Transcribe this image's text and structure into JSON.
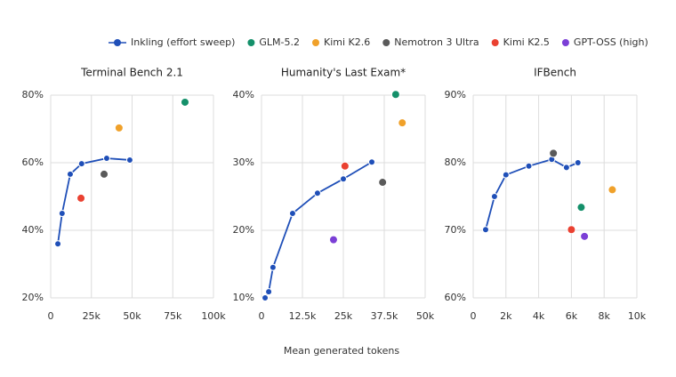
{
  "legend": [
    {
      "name": "Inkling (effort sweep)",
      "color": "#1f4fb8",
      "line": true
    },
    {
      "name": "GLM-5.2",
      "color": "#14906a"
    },
    {
      "name": "Kimi K2.6",
      "color": "#f0a12a"
    },
    {
      "name": "Nemotron 3 Ultra",
      "color": "#5a5a5a"
    },
    {
      "name": "Kimi K2.5",
      "color": "#ea4131"
    },
    {
      "name": "GPT-OSS (high)",
      "color": "#7b3fd6"
    }
  ],
  "xlabel": "Mean generated tokens",
  "chart_data": [
    {
      "type": "scatter",
      "title": "Terminal Bench 2.1",
      "xlim": [
        0,
        100000
      ],
      "xticks": [
        0,
        {
          "value": 25000,
          "label": "25k"
        },
        {
          "value": 50000,
          "label": "50k"
        },
        {
          "value": 75000,
          "label": "75k"
        },
        {
          "value": 100000,
          "label": "100k"
        }
      ],
      "ylim": [
        20,
        80
      ],
      "yticks": [
        {
          "value": 20,
          "label": "20%"
        },
        {
          "value": 40,
          "label": "40%"
        },
        {
          "value": 60,
          "label": "60%"
        },
        {
          "value": 80,
          "label": "80%"
        }
      ],
      "grid": true,
      "series": [
        {
          "name": "Inkling (effort sweep)",
          "x": [
            4400,
            7000,
            12000,
            19000,
            34400,
            48600
          ],
          "values": [
            36,
            45,
            56.6,
            59.7,
            61.3,
            60.8
          ]
        },
        {
          "name": "GLM-5.2",
          "x": [
            82500
          ],
          "values": [
            77.9
          ]
        },
        {
          "name": "Kimi K2.6",
          "x": [
            42000
          ],
          "values": [
            70.3
          ]
        },
        {
          "name": "Nemotron 3 Ultra",
          "x": [
            32800
          ],
          "values": [
            56.6
          ]
        },
        {
          "name": "Kimi K2.5",
          "x": [
            18600
          ],
          "values": [
            49.5
          ]
        }
      ]
    },
    {
      "type": "scatter",
      "title": "Humanity's Last Exam*",
      "xlim": [
        0,
        50000
      ],
      "xticks": [
        0,
        {
          "value": 12500,
          "label": "12.5k"
        },
        {
          "value": 25000,
          "label": "25k"
        },
        {
          "value": 37500,
          "label": "37.5k"
        },
        {
          "value": 50000,
          "label": "50k"
        }
      ],
      "ylim": [
        10,
        40
      ],
      "yticks": [
        {
          "value": 10,
          "label": "10%"
        },
        {
          "value": 20,
          "label": "20%"
        },
        {
          "value": 30,
          "label": "30%"
        },
        {
          "value": 40,
          "label": "40%"
        }
      ],
      "grid": true,
      "series": [
        {
          "name": "Inkling (effort sweep)",
          "x": [
            1100,
            2200,
            3500,
            9500,
            17100,
            25000,
            33700
          ],
          "values": [
            10,
            10.9,
            14.5,
            22.5,
            25.5,
            27.6,
            30.1
          ]
        },
        {
          "name": "GLM-5.2",
          "x": [
            41000
          ],
          "values": [
            40.1
          ]
        },
        {
          "name": "Kimi K2.6",
          "x": [
            43000
          ],
          "values": [
            35.9
          ]
        },
        {
          "name": "Nemotron 3 Ultra",
          "x": [
            37000
          ],
          "values": [
            27.1
          ]
        },
        {
          "name": "Kimi K2.5",
          "x": [
            25500
          ],
          "values": [
            29.5
          ]
        },
        {
          "name": "GPT-OSS (high)",
          "x": [
            22000
          ],
          "values": [
            18.6
          ]
        }
      ]
    },
    {
      "type": "scatter",
      "title": "IFBench",
      "xlim": [
        0,
        10000
      ],
      "xticks": [
        0,
        {
          "value": 2000,
          "label": "2k"
        },
        {
          "value": 4000,
          "label": "4k"
        },
        {
          "value": 6000,
          "label": "6k"
        },
        {
          "value": 8000,
          "label": "8k"
        },
        {
          "value": 10000,
          "label": "10k"
        }
      ],
      "ylim": [
        60,
        90
      ],
      "yticks": [
        {
          "value": 60,
          "label": "60%"
        },
        {
          "value": 70,
          "label": "70%"
        },
        {
          "value": 80,
          "label": "80%"
        },
        {
          "value": 90,
          "label": "90%"
        }
      ],
      "grid": true,
      "series": [
        {
          "name": "Inkling (effort sweep)",
          "x": [
            760,
            1300,
            2000,
            3400,
            4800,
            5700,
            6400
          ],
          "values": [
            70.1,
            75,
            78.2,
            79.5,
            80.5,
            79.3,
            80
          ]
        },
        {
          "name": "GLM-5.2",
          "x": [
            6600
          ],
          "values": [
            73.4
          ]
        },
        {
          "name": "Kimi K2.6",
          "x": [
            8500
          ],
          "values": [
            76
          ]
        },
        {
          "name": "Nemotron 3 Ultra",
          "x": [
            4900
          ],
          "values": [
            81.4
          ]
        },
        {
          "name": "Kimi K2.5",
          "x": [
            6000
          ],
          "values": [
            70.1
          ]
        },
        {
          "name": "GPT-OSS (high)",
          "x": [
            6800
          ],
          "values": [
            69.1
          ]
        }
      ]
    }
  ]
}
